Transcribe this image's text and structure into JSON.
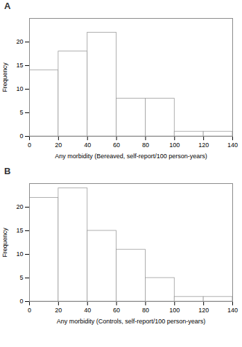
{
  "chart_data": [
    {
      "type": "histogram",
      "title": "A",
      "bins": [
        0,
        20,
        40,
        60,
        80,
        100,
        120,
        140
      ],
      "counts": [
        14,
        18,
        22,
        8,
        8,
        1,
        1
      ],
      "color": "#ffffff",
      "xlabel": "Any morbidity (Bereaved, self-report/100 person-years)",
      "ylabel": "Frequency",
      "xlim": [
        0,
        140
      ],
      "ylim": [
        0,
        25
      ],
      "xticks": [
        0,
        20,
        40,
        60,
        80,
        100,
        120,
        140
      ],
      "yticks": [
        0,
        5,
        10,
        15,
        20
      ]
    },
    {
      "type": "histogram",
      "title": "B",
      "bins": [
        0,
        20,
        40,
        60,
        80,
        100,
        120,
        140
      ],
      "counts": [
        22,
        24,
        15,
        11,
        5,
        1,
        1
      ],
      "color": "#ffffff",
      "xlabel": "Any morbidity (Controls, self-report/100 person-years)",
      "ylabel": "Frequency",
      "xlim": [
        0,
        140
      ],
      "ylim": [
        0,
        25
      ],
      "xticks": [
        0,
        20,
        40,
        60,
        80,
        100,
        120,
        140
      ],
      "yticks": [
        0,
        5,
        10,
        15,
        20
      ]
    }
  ]
}
